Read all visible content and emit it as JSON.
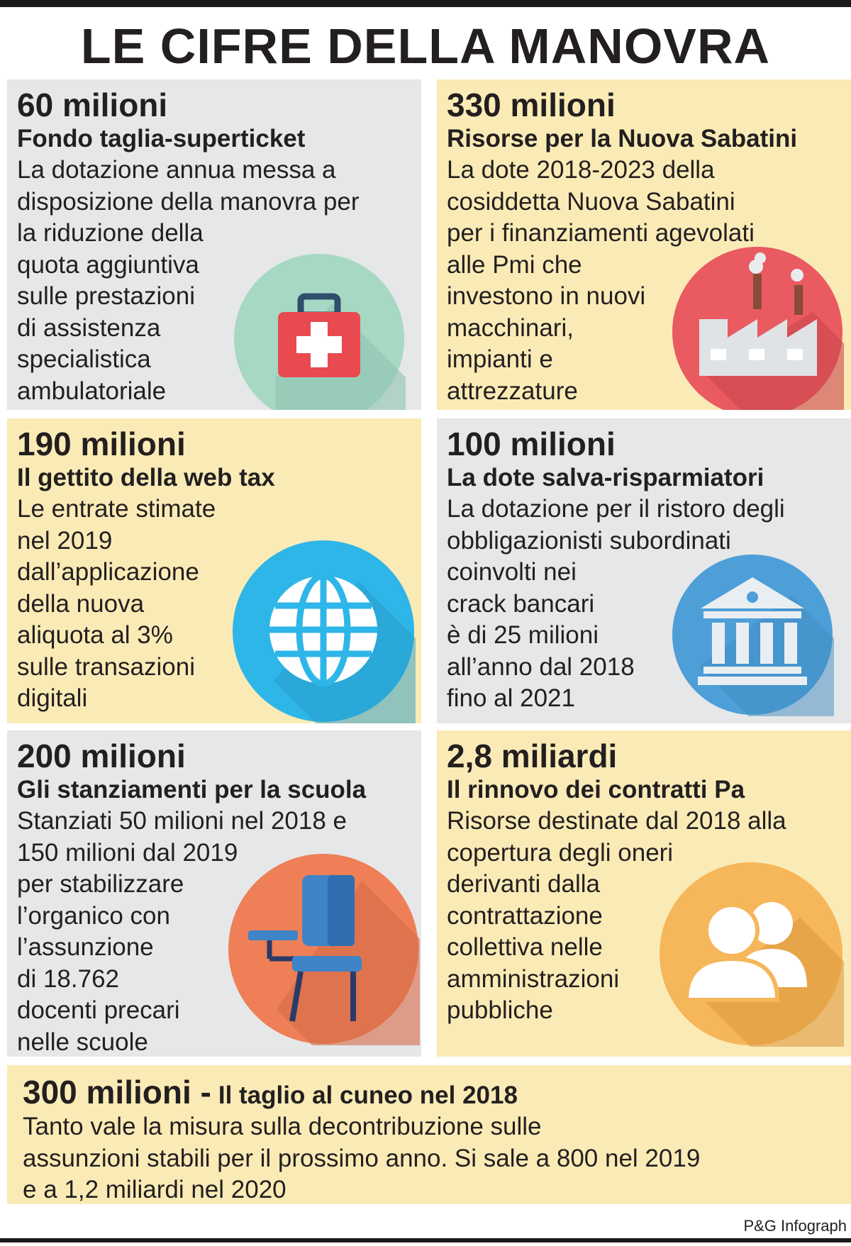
{
  "title": "LE CIFRE DELLA MANOVRA",
  "cards": [
    {
      "amount": "60 milioni",
      "heading": "Fondo taglia-superticket",
      "lines": [
        "La dotazione annua messa a",
        "disposizione della manovra per",
        "la riduzione della",
        "quota aggiuntiva",
        "sulle prestazioni",
        "di assistenza",
        "specialistica",
        "ambulatoriale"
      ],
      "icon": "first-aid-kit-icon"
    },
    {
      "amount": "330 milioni",
      "heading": "Risorse per la Nuova Sabatini",
      "lines": [
        "La dote 2018-2023 della",
        "cosiddetta Nuova Sabatini",
        "per i finanziamenti agevolati",
        "alle Pmi che",
        "investono in nuovi",
        "macchinari,",
        "impianti e",
        "attrezzature"
      ],
      "icon": "factory-icon"
    },
    {
      "amount": "190 milioni",
      "heading": "Il gettito della web tax",
      "lines": [
        "Le entrate stimate",
        "nel 2019",
        "dall’applicazione",
        "della nuova",
        "aliquota al 3%",
        "sulle transazioni",
        "digitali"
      ],
      "icon": "globe-icon"
    },
    {
      "amount": "100 milioni",
      "heading": "La dote salva-risparmiatori",
      "lines": [
        "La dotazione per il ristoro degli",
        "obbligazionisti subordinati",
        "coinvolti nei",
        "crack bancari",
        "è di 25 milioni",
        "all’anno dal 2018",
        "fino al 2021"
      ],
      "icon": "bank-icon"
    },
    {
      "amount": "200 milioni",
      "heading": "Gli stanziamenti per la scuola",
      "lines": [
        "Stanziati 50 milioni nel 2018 e",
        "150 milioni dal 2019",
        "per stabilizzare",
        "l’organico con",
        "l’assunzione",
        "di 18.762",
        "docenti precari",
        "nelle scuole"
      ],
      "icon": "school-chair-icon"
    },
    {
      "amount": "2,8 miliardi",
      "heading": "Il rinnovo dei contratti Pa",
      "lines": [
        "Risorse destinate dal 2018 alla",
        "copertura degli oneri",
        "derivanti dalla",
        "contrattazione",
        "collettiva nelle",
        "amministrazioni",
        "pubbliche"
      ],
      "icon": "people-icon"
    }
  ],
  "wide": {
    "amount": "300 milioni -",
    "heading": "Il taglio al cuneo nel 2018",
    "lines": [
      "Tanto vale la misura sulla decontribuzione sulle",
      "assunzioni stabili per il prossimo anno. Si sale a 800 nel 2019",
      "e a 1,2 miliardi nel 2020"
    ]
  },
  "credit": "P&G Infograph",
  "colors": {
    "grey_card": "#e6e7e8",
    "yellow_card": "#faebb6",
    "teal_circle": "#a6d8c4",
    "red_circle": "#ea5a61",
    "blue_circle": "#2eb6e8",
    "steel_blue_circle": "#4e9fd8",
    "orange_circle": "#ee7f57",
    "amber_circle": "#f6b65a"
  }
}
